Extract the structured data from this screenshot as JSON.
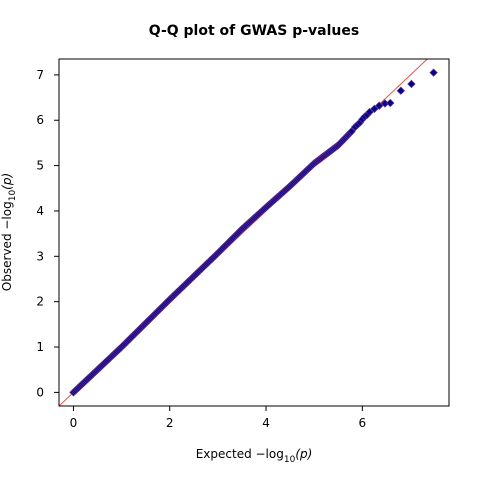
{
  "chart_data": {
    "type": "scatter",
    "title": "Q-Q plot of GWAS p-values",
    "xlabel": "Expected  −log",
    "ylabel": "Observed  −log",
    "label_subscript": "10",
    "label_arg": "(p)",
    "xlim": [
      -0.3,
      7.8
    ],
    "ylim": [
      -0.3,
      7.35
    ],
    "xticks": [
      "0",
      "2",
      "4",
      "6"
    ],
    "yticks": [
      "0",
      "1",
      "2",
      "3",
      "4",
      "5",
      "6",
      "7"
    ],
    "reference_line": {
      "from": [
        -0.3,
        -0.3
      ],
      "to": [
        7.8,
        7.8
      ],
      "color": "#e8504a"
    },
    "point_color": "#00008b",
    "point_edge": "#5a2a8a",
    "series": [
      {
        "curve": [
          [
            0,
            0
          ],
          [
            1,
            1.0
          ],
          [
            2,
            2.05
          ],
          [
            3,
            3.07
          ],
          [
            3.5,
            3.6
          ],
          [
            4,
            4.08
          ],
          [
            4.5,
            4.55
          ],
          [
            5,
            5.05
          ],
          [
            5.5,
            5.45
          ],
          [
            5.8,
            5.78
          ]
        ],
        "outliers": [
          [
            5.85,
            5.85
          ],
          [
            5.9,
            5.9
          ],
          [
            5.95,
            5.95
          ],
          [
            6.0,
            6.02
          ],
          [
            6.05,
            6.08
          ],
          [
            6.1,
            6.12
          ],
          [
            6.15,
            6.18
          ],
          [
            6.25,
            6.25
          ],
          [
            6.35,
            6.32
          ],
          [
            6.47,
            6.37
          ],
          [
            6.58,
            6.38
          ],
          [
            6.8,
            6.65
          ],
          [
            7.02,
            6.8
          ],
          [
            7.48,
            7.05
          ]
        ]
      }
    ]
  }
}
